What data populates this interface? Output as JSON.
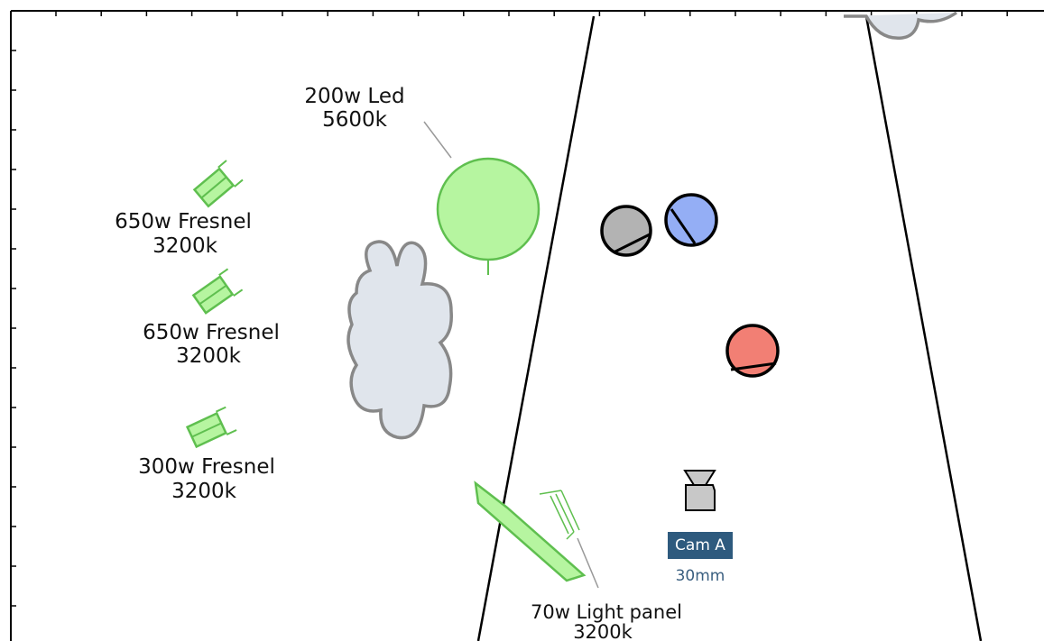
{
  "lights": [
    {
      "name": "200w Led",
      "temp": "5600k"
    },
    {
      "name": "650w Fresnel",
      "temp": "3200k"
    },
    {
      "name": "650w Fresnel",
      "temp": "3200k"
    },
    {
      "name": "300w Fresnel",
      "temp": "3200k"
    },
    {
      "name": "70w Light panel",
      "temp": "3200k"
    }
  ],
  "camera": {
    "name": "Cam A",
    "lens": "30mm"
  }
}
